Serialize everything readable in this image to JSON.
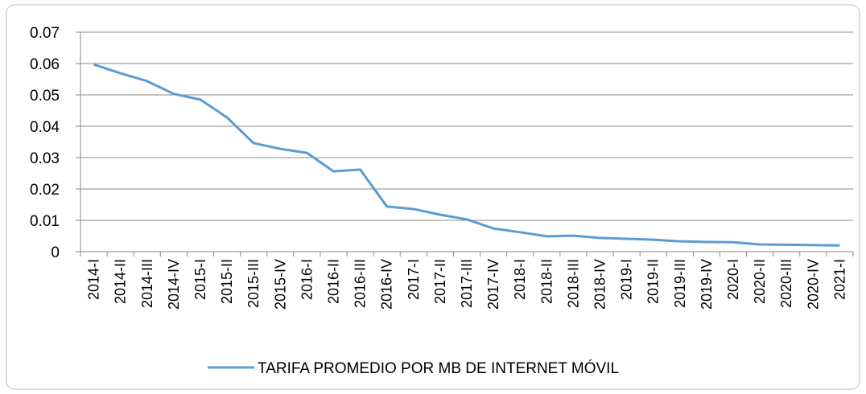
{
  "chart_data": {
    "type": "line",
    "categories": [
      "2014-I",
      "2014-II",
      "2014-III",
      "2014-IV",
      "2015-I",
      "2015-II",
      "2015-III",
      "2015-IV",
      "2016-I",
      "2016-II",
      "2016-III",
      "2016-IV",
      "2017-I",
      "2017-II",
      "2017-III",
      "2017-IV",
      "2018-I",
      "2018-II",
      "2018-III",
      "2018-IV",
      "2019-I",
      "2019-II",
      "2019-III",
      "2019-IV",
      "2020-I",
      "2020-II",
      "2020-III",
      "2020-IV",
      "2021-I"
    ],
    "series": [
      {
        "name": "TARIFA PROMEDIO POR MB DE INTERNET MÓVIL",
        "color": "#5b9bd5",
        "values": [
          0.0597,
          0.0569,
          0.0544,
          0.0503,
          0.0485,
          0.0428,
          0.0346,
          0.0328,
          0.0315,
          0.0256,
          0.0262,
          0.0144,
          0.0136,
          0.0118,
          0.0103,
          0.0074,
          0.0062,
          0.0049,
          0.0051,
          0.0044,
          0.0041,
          0.0038,
          0.0033,
          0.0031,
          0.003,
          0.0023,
          0.0022,
          0.0021,
          0.002
        ]
      }
    ],
    "ylim": [
      0,
      0.07
    ],
    "yticks": [
      0,
      0.01,
      0.02,
      0.03,
      0.04,
      0.05,
      0.06,
      0.07
    ],
    "grid": true,
    "legend": "bottom"
  }
}
